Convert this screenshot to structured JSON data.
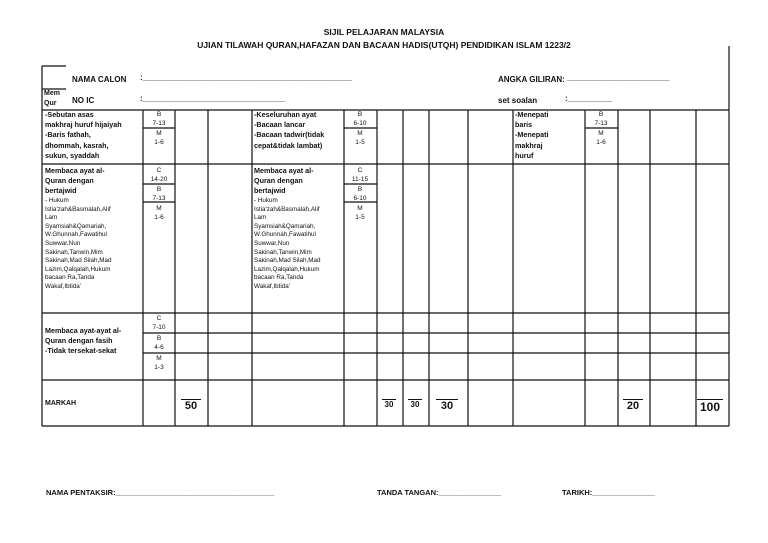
{
  "header": {
    "line1": "SIJIL PELAJARAN MALAYSIA",
    "line2": "UJIAN TILAWAH QURAN,HAFAZAN DAN BACAAN HADIS(UTQH) PENDIDIKAN ISLAM 1223/2"
  },
  "fields": {
    "nama_calon": "NAMA CALON",
    "nama_calon_line": ":_______________________________________________",
    "no_ic": "NO IC",
    "no_ic_line": ":________________________________",
    "angka_giliran": "ANGKA GILIRAN:",
    "angka_giliran_line": "_______________________",
    "set_soalan": "set soalan",
    "set_soalan_line": ":__________",
    "mem_qur": "Mem\nQur"
  },
  "rows": {
    "r1": {
      "c1": "-Sebutan asas\n makhraj huruf hijaiyah\n-Baris fathah,\n dhommah, kasrah,\n sukun, syaddah",
      "g1a": "B\n7-13",
      "g1b": "M\n1-6",
      "c2": "-Keseluruhan ayat\n-Bacaan lancar\n-Bacaan tadwir(tidak\n cepat&tidak lambat)",
      "g2a": "B\n6-10",
      "g2b": "M\n1-5",
      "c3": "-Menepati\n baris\n-Menepati\n makhraj\n huruf",
      "g3a": "B\n7-13",
      "g3b": "M\n1-6"
    },
    "r2": {
      "c1_head": "Membaca ayat al-\nQuran dengan\nbertajwid",
      "c1_body": "- Hukum\nIstia'zah&Basmalah,Alif\nLam\nSyamsiah&Qamariah,\nW.Ghunnah,Fawatihul\nSuwwar,Nun\nSakinah,Tanwin,Mim\nSakinah,Mad Silah,Mad\nLazim,Qalqalah,Hukum\nbacaan Ra,Tanda\nWakaf,Ibtida'",
      "g1a": "C\n14-20",
      "g1b": "B\n7-13",
      "g1c": "M\n1-6",
      "c2_head": "Membaca ayat al-\nQuran dengan\nbertajwid",
      "c2_body": "- Hukum\nIstia'zah&Basmalah,Alif\nLam\nSyamsiah&Qamariah,\nW.Ghunnah,Fawatihul\nSuwwar,Nun\nSakinah,Tanwin,Mim\nSakinah,Mad Silah,Mad\nLazim,Qalqalah,Hukum\nbacaan Ra,Tanda\nWakaf,Ibtida'",
      "g2a": "C\n11-15",
      "g2b": "B\n6-10",
      "g2c": "M\n1-5"
    },
    "r3": {
      "c1": "Membaca ayat-ayat al-\nQuran dengan fasih\n-Tidak tersekat-sekat",
      "g1a": "C\n7-10",
      "g1b": "B\n4-6",
      "g1c": "M\n1-3"
    },
    "markah": {
      "label": "MARKAH",
      "m1": "50",
      "m2a": "30",
      "m2b": "30",
      "m2c": "30",
      "m3": "20",
      "total": "100"
    }
  },
  "footer": {
    "pentaksir": "NAMA PENTAKSIR:______________________________________",
    "tandatangan": "TANDA TANGAN:_______________",
    "tarikh": "TARIKH:_______________"
  }
}
